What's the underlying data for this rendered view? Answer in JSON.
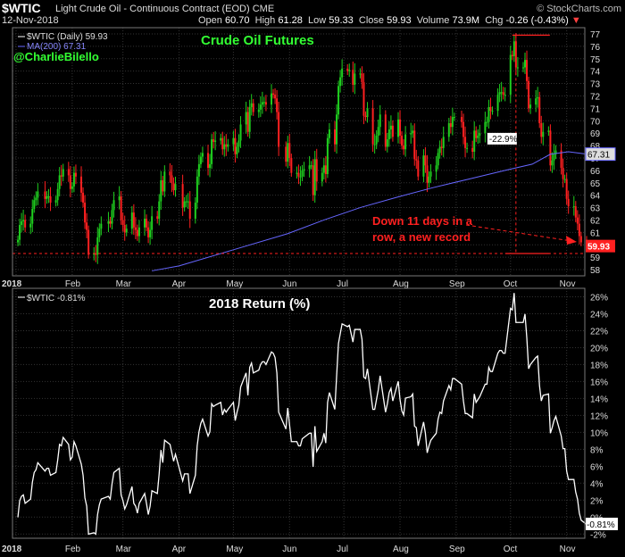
{
  "header": {
    "symbol": "$WTIC",
    "description": "Light Crude Oil - Continuous Contract (EOD)",
    "exchange": "CME",
    "brand": "© StockCharts.com",
    "date": "12-Nov-2018",
    "open_label": "Open",
    "open": "60.70",
    "high_label": "High",
    "high": "61.28",
    "low_label": "Low",
    "low": "59.33",
    "close_label": "Close",
    "close": "59.93",
    "volume_label": "Volume",
    "volume": "73.9M",
    "chg_label": "Chg",
    "chg": "-0.26 (-0.43%)",
    "chg_arrow": "▼"
  },
  "colors": {
    "up": "#1fcf1f",
    "down": "#ff2020",
    "ma": "#6666ff",
    "green_text": "#33ff33",
    "red_text": "#ff2020",
    "return_line": "#ffffff",
    "grid": "#333333"
  },
  "chart_data": [
    {
      "type": "candlestick",
      "title": "Crude Oil Futures",
      "handle": "@CharlieBilello",
      "legend": [
        {
          "name": "$WTIC (Daily)",
          "last": "59.93"
        },
        {
          "name": "MA(200)",
          "last": "67.31"
        }
      ],
      "ylim": [
        57.5,
        77.5
      ],
      "y_ticks": [
        58,
        59,
        60,
        61,
        62,
        63,
        64,
        65,
        66,
        67,
        68,
        69,
        70,
        71,
        72,
        73,
        74,
        75,
        76,
        77
      ],
      "x_ticks": [
        "2018",
        "Feb",
        "Mar",
        "Apr",
        "May",
        "Jun",
        "Jul",
        "Aug",
        "Sep",
        "Oct",
        "Nov"
      ],
      "x_tick_days": [
        0,
        31,
        59,
        90,
        120,
        151,
        181,
        212,
        243,
        273,
        304
      ],
      "x_range_days": [
        0,
        316
      ],
      "close": [
        [
          1,
          60.4
        ],
        [
          2,
          61.6
        ],
        [
          3,
          61.9
        ],
        [
          4,
          62.0
        ],
        [
          5,
          61.4
        ],
        [
          8,
          61.7
        ],
        [
          9,
          62.9
        ],
        [
          10,
          63.6
        ],
        [
          11,
          63.8
        ],
        [
          12,
          64.3
        ],
        [
          16,
          63.7
        ],
        [
          17,
          63.9
        ],
        [
          18,
          63.9
        ],
        [
          19,
          63.4
        ],
        [
          22,
          63.6
        ],
        [
          23,
          64.5
        ],
        [
          24,
          65.6
        ],
        [
          25,
          65.5
        ],
        [
          26,
          66.1
        ],
        [
          29,
          65.6
        ],
        [
          30,
          64.5
        ],
        [
          31,
          64.7
        ],
        [
          32,
          65.8
        ],
        [
          33,
          65.5
        ],
        [
          36,
          64.2
        ],
        [
          37,
          63.4
        ],
        [
          38,
          61.8
        ],
        [
          39,
          61.2
        ],
        [
          40,
          59.2
        ],
        [
          43,
          59.3
        ],
        [
          44,
          59.2
        ],
        [
          45,
          60.6
        ],
        [
          46,
          61.3
        ],
        [
          47,
          61.7
        ],
        [
          51,
          61.9
        ],
        [
          52,
          61.7
        ],
        [
          53,
          62.8
        ],
        [
          54,
          63.6
        ],
        [
          57,
          63.9
        ],
        [
          58,
          62.0
        ],
        [
          59,
          61.6
        ],
        [
          60,
          61.0
        ],
        [
          61,
          61.3
        ],
        [
          64,
          62.6
        ],
        [
          65,
          61.4
        ],
        [
          66,
          61.2
        ],
        [
          67,
          60.7
        ],
        [
          68,
          61.4
        ],
        [
          71,
          62.1
        ],
        [
          72,
          61.4
        ],
        [
          73,
          60.6
        ],
        [
          74,
          61.2
        ],
        [
          75,
          62.3
        ],
        [
          78,
          62.1
        ],
        [
          79,
          63.5
        ],
        [
          80,
          65.2
        ],
        [
          81,
          64.3
        ],
        [
          82,
          65.9
        ],
        [
          85,
          65.6
        ],
        [
          86,
          65.0
        ],
        [
          87,
          64.4
        ],
        [
          88,
          64.9
        ],
        [
          92,
          63.0
        ],
        [
          93,
          63.5
        ],
        [
          94,
          63.5
        ],
        [
          95,
          63.5
        ],
        [
          96,
          62.1
        ],
        [
          99,
          63.4
        ],
        [
          100,
          65.5
        ],
        [
          101,
          66.5
        ],
        [
          102,
          67.1
        ],
        [
          103,
          67.4
        ],
        [
          106,
          66.2
        ],
        [
          107,
          66.5
        ],
        [
          108,
          68.5
        ],
        [
          109,
          68.3
        ],
        [
          110,
          68.4
        ],
        [
          113,
          68.6
        ],
        [
          114,
          67.7
        ],
        [
          115,
          68.1
        ],
        [
          116,
          67.9
        ],
        [
          117,
          68.1
        ],
        [
          120,
          68.6
        ],
        [
          121,
          67.3
        ],
        [
          122,
          67.9
        ],
        [
          123,
          68.4
        ],
        [
          124,
          69.7
        ],
        [
          127,
          70.7
        ],
        [
          128,
          69.1
        ],
        [
          129,
          71.1
        ],
        [
          130,
          71.4
        ],
        [
          131,
          70.7
        ],
        [
          134,
          70.9
        ],
        [
          135,
          71.3
        ],
        [
          136,
          71.5
        ],
        [
          137,
          71.5
        ],
        [
          138,
          71.3
        ],
        [
          141,
          72.2
        ],
        [
          142,
          72.1
        ],
        [
          143,
          71.8
        ],
        [
          144,
          70.7
        ],
        [
          145,
          67.9
        ],
        [
          149,
          66.7
        ],
        [
          150,
          68.2
        ],
        [
          151,
          67.0
        ],
        [
          152,
          65.8
        ],
        [
          155,
          65.8
        ],
        [
          156,
          65.5
        ],
        [
          157,
          65.5
        ],
        [
          158,
          66.0
        ],
        [
          159,
          66.1
        ],
        [
          162,
          66.4
        ],
        [
          163,
          66.4
        ],
        [
          164,
          64.0
        ],
        [
          165,
          66.9
        ],
        [
          166,
          65.1
        ],
        [
          169,
          65.8
        ],
        [
          170,
          66.4
        ],
        [
          171,
          65.7
        ],
        [
          172,
          68.6
        ],
        [
          173,
          69.3
        ],
        [
          176,
          68.1
        ],
        [
          177,
          70.5
        ],
        [
          178,
          72.8
        ],
        [
          179,
          73.5
        ],
        [
          180,
          74.2
        ],
        [
          183,
          74.0
        ],
        [
          184,
          74.1
        ],
        [
          186,
          72.9
        ],
        [
          187,
          73.8
        ],
        [
          190,
          73.8
        ],
        [
          191,
          73.1
        ],
        [
          192,
          70.4
        ],
        [
          193,
          70.3
        ],
        [
          194,
          71.0
        ],
        [
          197,
          68.1
        ],
        [
          198,
          68.1
        ],
        [
          199,
          68.8
        ],
        [
          200,
          69.5
        ],
        [
          201,
          70.5
        ],
        [
          204,
          67.9
        ],
        [
          205,
          68.5
        ],
        [
          206,
          69.3
        ],
        [
          207,
          69.6
        ],
        [
          208,
          68.7
        ],
        [
          211,
          70.1
        ],
        [
          212,
          68.8
        ],
        [
          213,
          68.0
        ],
        [
          214,
          67.7
        ],
        [
          215,
          68.9
        ],
        [
          218,
          69.0
        ],
        [
          219,
          69.2
        ],
        [
          220,
          66.9
        ],
        [
          221,
          66.8
        ],
        [
          222,
          65.5
        ],
        [
          225,
          67.2
        ],
        [
          226,
          66.4
        ],
        [
          227,
          65.0
        ],
        [
          228,
          65.5
        ],
        [
          229,
          65.9
        ],
        [
          232,
          66.4
        ],
        [
          233,
          67.4
        ],
        [
          234,
          67.9
        ],
        [
          235,
          67.8
        ],
        [
          236,
          68.7
        ],
        [
          239,
          69.8
        ],
        [
          240,
          69.5
        ],
        [
          241,
          70.3
        ],
        [
          242,
          70.3
        ],
        [
          246,
          69.9
        ],
        [
          247,
          68.7
        ],
        [
          248,
          67.8
        ],
        [
          249,
          67.8
        ],
        [
          252,
          67.5
        ],
        [
          253,
          69.2
        ],
        [
          254,
          68.6
        ],
        [
          255,
          68.8
        ],
        [
          256,
          69.0
        ],
        [
          259,
          69.9
        ],
        [
          260,
          69.9
        ],
        [
          261,
          71.1
        ],
        [
          262,
          70.8
        ],
        [
          263,
          70.8
        ],
        [
          266,
          72.1
        ],
        [
          267,
          72.3
        ],
        [
          268,
          72.3
        ],
        [
          269,
          72.1
        ],
        [
          270,
          72.1
        ],
        [
          273,
          75.3
        ],
        [
          274,
          75.2
        ],
        [
          275,
          76.4
        ],
        [
          276,
          74.3
        ],
        [
          277,
          74.3
        ],
        [
          280,
          74.3
        ],
        [
          281,
          74.9
        ],
        [
          282,
          73.2
        ],
        [
          283,
          71.0
        ],
        [
          284,
          71.3
        ],
        [
          287,
          71.8
        ],
        [
          288,
          71.9
        ],
        [
          289,
          69.8
        ],
        [
          290,
          68.7
        ],
        [
          291,
          69.1
        ],
        [
          294,
          69.2
        ],
        [
          295,
          66.4
        ],
        [
          296,
          66.8
        ],
        [
          297,
          67.3
        ],
        [
          298,
          67.6
        ],
        [
          301,
          66.2
        ],
        [
          302,
          65.3
        ],
        [
          303,
          65.3
        ],
        [
          304,
          63.7
        ],
        [
          305,
          63.1
        ],
        [
          308,
          63.1
        ],
        [
          309,
          62.2
        ],
        [
          310,
          61.7
        ],
        [
          311,
          60.7
        ],
        [
          312,
          60.2
        ],
        [
          315,
          59.9
        ]
      ],
      "ma200": [
        [
          75,
          57.9
        ],
        [
          90,
          58.3
        ],
        [
          120,
          59.6
        ],
        [
          150,
          60.9
        ],
        [
          170,
          62.0
        ],
        [
          190,
          63.0
        ],
        [
          212,
          63.9
        ],
        [
          230,
          64.6
        ],
        [
          250,
          65.3
        ],
        [
          270,
          66.0
        ],
        [
          285,
          66.5
        ],
        [
          295,
          67.3
        ],
        [
          305,
          67.5
        ],
        [
          315,
          67.31
        ]
      ],
      "annotations": {
        "pct_drop": "-22.9%",
        "note_line1": "Down 11 days in a",
        "note_line2": "row, a new record",
        "last_price": "59.93",
        "last_ma": "67.31"
      }
    },
    {
      "type": "line",
      "title": "2018 Return (%)",
      "legend": [
        {
          "name": "$WTIC -0.81%"
        }
      ],
      "ylim": [
        -2.5,
        27
      ],
      "y_ticks": [
        -2,
        0,
        2,
        4,
        6,
        8,
        10,
        12,
        14,
        16,
        18,
        20,
        22,
        24,
        26
      ],
      "last_value": "-0.81%",
      "x_ticks": [
        "2018",
        "Feb",
        "Mar",
        "Apr",
        "May",
        "Jun",
        "Jul",
        "Aug",
        "Sep",
        "Oct",
        "Nov"
      ]
    }
  ]
}
